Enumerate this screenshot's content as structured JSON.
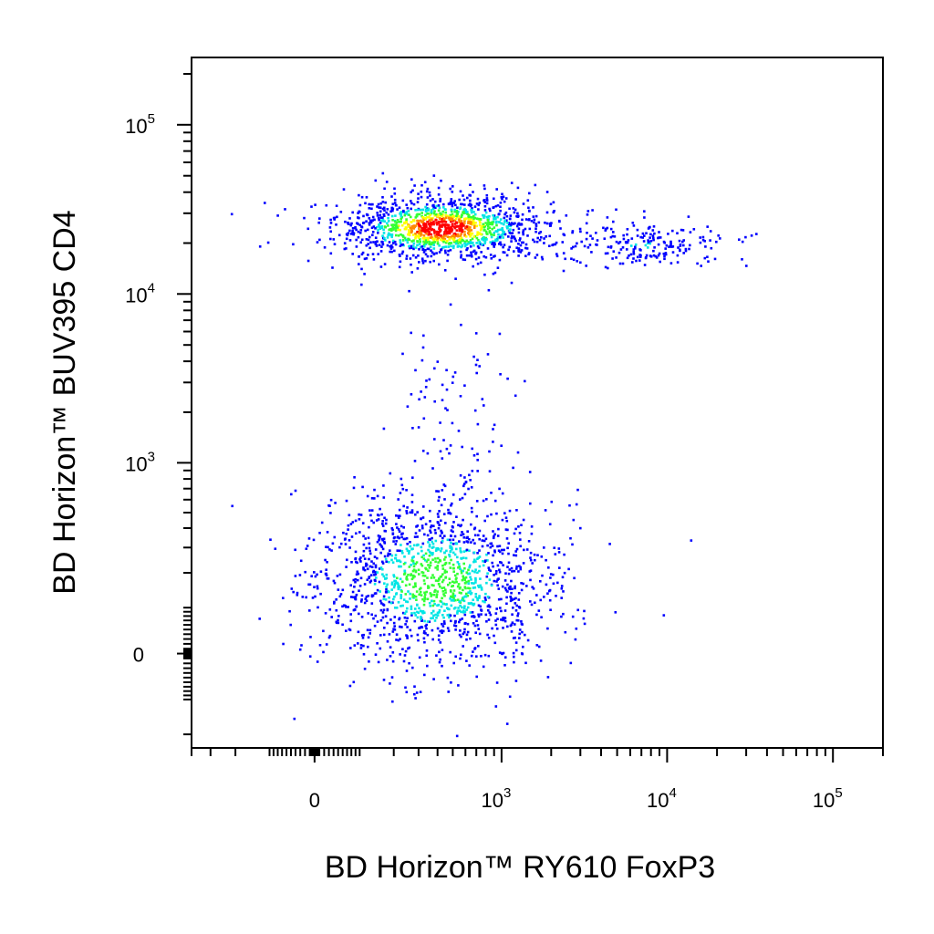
{
  "chart_data": {
    "type": "scatter",
    "title": "",
    "xlabel": "BD Horizon™ RY610 FoxP3",
    "ylabel": "BD Horizon™ BUV395  CD4",
    "x_scale": "biexponential",
    "y_scale": "biexponential",
    "xlim": [
      -400,
      200000
    ],
    "ylim": [
      -250,
      250000
    ],
    "x_ticks": [
      {
        "value": 0,
        "base": "0",
        "exp": ""
      },
      {
        "value": 1000,
        "base": "10",
        "exp": "3"
      },
      {
        "value": 10000,
        "base": "10",
        "exp": "4"
      },
      {
        "value": 100000,
        "base": "10",
        "exp": "5"
      }
    ],
    "y_ticks": [
      {
        "value": 0,
        "base": "0",
        "exp": ""
      },
      {
        "value": 1000,
        "base": "10",
        "exp": "3"
      },
      {
        "value": 10000,
        "base": "10",
        "exp": "4"
      },
      {
        "value": 100000,
        "base": "10",
        "exp": "5"
      }
    ],
    "grid": false,
    "legend": "none",
    "color_scale": [
      "#0000ff",
      "#00e5e5",
      "#33ff33",
      "#ffff00",
      "#ff8800",
      "#ff0000"
    ],
    "populations": [
      {
        "x_center": 420,
        "y_center": 25000,
        "x_spread": 0.42,
        "y_spread": 0.13,
        "count": 1400,
        "density_peak": 0.95
      },
      {
        "x_center": 7500,
        "y_center": 20000,
        "x_spread": 0.32,
        "y_spread": 0.1,
        "count": 200,
        "density_peak": 0.25
      },
      {
        "x_center": 380,
        "y_center": 180,
        "x_spread": 0.48,
        "y_spread": 0.35,
        "count": 1500,
        "density_peak": 0.5
      },
      {
        "x_center": 480,
        "y_center": 2500,
        "x_spread": 0.25,
        "y_spread": 0.45,
        "count": 80,
        "density_peak": 0.05
      }
    ]
  }
}
